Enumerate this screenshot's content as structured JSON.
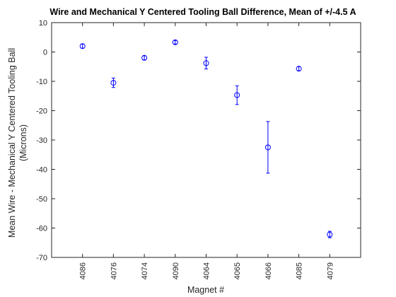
{
  "chart_data": {
    "type": "scatter",
    "title": "Wire and Mechanical Y Centered Tooling Ball Difference, Mean of +/-4.5 A",
    "xlabel": "Magnet #",
    "ylabel_line1": "Mean Wire - Mechanical Y Centered Tooling Ball",
    "ylabel_line2": "(Microns)",
    "categories": [
      "4086",
      "4076",
      "4074",
      "4090",
      "4064",
      "4065",
      "4066",
      "4085",
      "4079"
    ],
    "values": [
      2.0,
      -10.5,
      -2.0,
      3.3,
      -3.8,
      -14.7,
      -32.5,
      -5.7,
      -62.2
    ],
    "errors": [
      0.7,
      1.6,
      0.7,
      0.6,
      2.0,
      3.2,
      8.8,
      0.7,
      1.1
    ],
    "ylim": [
      -70,
      10
    ],
    "yticks": [
      10,
      0,
      -10,
      -20,
      -30,
      -40,
      -50,
      -60,
      -70
    ],
    "grid": false,
    "legend": "none",
    "marker": "open-circle",
    "color": "#0000ff",
    "axis_color": "#262626"
  }
}
